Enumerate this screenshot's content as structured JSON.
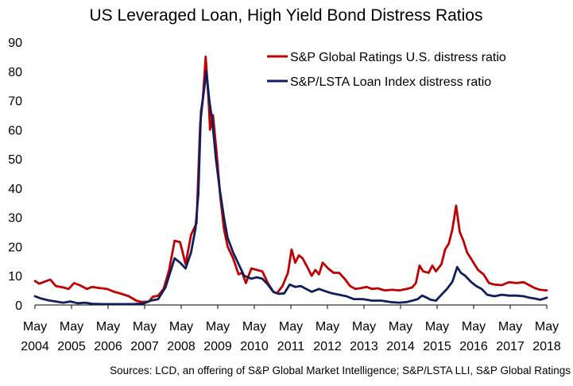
{
  "chart_data": {
    "type": "line",
    "title": "US Leveraged Loan, High Yield Bond Distress Ratios",
    "source": "Sources: LCD, an offering of S&P Global Market Intelligence; S&P/LSTA LLI, S&P Global Ratings",
    "ylim": [
      0,
      90
    ],
    "yticks": [
      0,
      10,
      20,
      30,
      40,
      50,
      60,
      70,
      80,
      90
    ],
    "xlim": [
      2004.33,
      2018.33
    ],
    "xticks": [
      {
        "value": 2004.33,
        "line1": "May",
        "line2": "2004"
      },
      {
        "value": 2005.33,
        "line1": "May",
        "line2": "2005"
      },
      {
        "value": 2006.33,
        "line1": "May",
        "line2": "2006"
      },
      {
        "value": 2007.33,
        "line1": "May",
        "line2": "2007"
      },
      {
        "value": 2008.33,
        "line1": "May",
        "line2": "2008"
      },
      {
        "value": 2009.33,
        "line1": "May",
        "line2": "2009"
      },
      {
        "value": 2010.33,
        "line1": "May",
        "line2": "2010"
      },
      {
        "value": 2011.33,
        "line1": "May",
        "line2": "2011"
      },
      {
        "value": 2012.33,
        "line1": "May",
        "line2": "2012"
      },
      {
        "value": 2013.33,
        "line1": "May",
        "line2": "2013"
      },
      {
        "value": 2014.33,
        "line1": "May",
        "line2": "2014"
      },
      {
        "value": 2015.33,
        "line1": "May",
        "line2": "2015"
      },
      {
        "value": 2016.33,
        "line1": "May",
        "line2": "2016"
      },
      {
        "value": 2017.33,
        "line1": "May",
        "line2": "2017"
      },
      {
        "value": 2018.33,
        "line1": "May",
        "line2": "2018"
      }
    ],
    "legend_position": "top-right",
    "series": [
      {
        "name": "S&P Global Ratings U.S. distress ratio",
        "color": "#c00000",
        "points": [
          [
            2004.33,
            8.2
          ],
          [
            2004.45,
            7.3
          ],
          [
            2004.6,
            8.0
          ],
          [
            2004.75,
            8.7
          ],
          [
            2004.9,
            6.5
          ],
          [
            2005.1,
            6.0
          ],
          [
            2005.25,
            5.5
          ],
          [
            2005.4,
            7.5
          ],
          [
            2005.55,
            6.8
          ],
          [
            2005.75,
            5.5
          ],
          [
            2005.9,
            6.2
          ],
          [
            2006.1,
            5.8
          ],
          [
            2006.3,
            5.5
          ],
          [
            2006.5,
            4.5
          ],
          [
            2006.7,
            3.8
          ],
          [
            2006.9,
            3.0
          ],
          [
            2007.1,
            1.5
          ],
          [
            2007.25,
            1.0
          ],
          [
            2007.45,
            1.2
          ],
          [
            2007.55,
            2.8
          ],
          [
            2007.7,
            3.2
          ],
          [
            2007.85,
            5.5
          ],
          [
            2008.0,
            12.0
          ],
          [
            2008.15,
            22.0
          ],
          [
            2008.3,
            21.5
          ],
          [
            2008.45,
            14.0
          ],
          [
            2008.6,
            24.0
          ],
          [
            2008.75,
            28.0
          ],
          [
            2008.85,
            62.0
          ],
          [
            2008.92,
            70.0
          ],
          [
            2009.0,
            85.0
          ],
          [
            2009.08,
            70.0
          ],
          [
            2009.12,
            60.0
          ],
          [
            2009.2,
            65.0
          ],
          [
            2009.3,
            52.0
          ],
          [
            2009.4,
            37.0
          ],
          [
            2009.5,
            26.0
          ],
          [
            2009.6,
            20.0
          ],
          [
            2009.75,
            16.0
          ],
          [
            2009.9,
            10.5
          ],
          [
            2010.0,
            11.0
          ],
          [
            2010.1,
            7.5
          ],
          [
            2010.25,
            12.5
          ],
          [
            2010.4,
            12.0
          ],
          [
            2010.55,
            11.5
          ],
          [
            2010.7,
            7.5
          ],
          [
            2010.85,
            4.5
          ],
          [
            2010.95,
            4.0
          ],
          [
            2011.1,
            6.5
          ],
          [
            2011.25,
            11.0
          ],
          [
            2011.35,
            19.0
          ],
          [
            2011.45,
            14.5
          ],
          [
            2011.55,
            17.0
          ],
          [
            2011.65,
            16.0
          ],
          [
            2011.8,
            12.5
          ],
          [
            2011.9,
            10.0
          ],
          [
            2012.0,
            12.0
          ],
          [
            2012.1,
            10.5
          ],
          [
            2012.2,
            14.5
          ],
          [
            2012.35,
            12.5
          ],
          [
            2012.5,
            11.0
          ],
          [
            2012.65,
            11.0
          ],
          [
            2012.8,
            9.0
          ],
          [
            2012.95,
            6.5
          ],
          [
            2013.1,
            5.5
          ],
          [
            2013.25,
            5.8
          ],
          [
            2013.4,
            6.2
          ],
          [
            2013.55,
            5.5
          ],
          [
            2013.7,
            5.7
          ],
          [
            2013.9,
            5.0
          ],
          [
            2014.1,
            5.2
          ],
          [
            2014.3,
            5.0
          ],
          [
            2014.5,
            5.5
          ],
          [
            2014.65,
            6.0
          ],
          [
            2014.75,
            7.5
          ],
          [
            2014.85,
            13.5
          ],
          [
            2014.95,
            11.5
          ],
          [
            2015.1,
            11.0
          ],
          [
            2015.2,
            13.5
          ],
          [
            2015.3,
            11.5
          ],
          [
            2015.45,
            14.0
          ],
          [
            2015.55,
            19.0
          ],
          [
            2015.65,
            21.0
          ],
          [
            2015.75,
            26.0
          ],
          [
            2015.85,
            34.0
          ],
          [
            2015.95,
            25.0
          ],
          [
            2016.05,
            22.0
          ],
          [
            2016.15,
            18.0
          ],
          [
            2016.3,
            15.0
          ],
          [
            2016.45,
            12.0
          ],
          [
            2016.6,
            10.5
          ],
          [
            2016.75,
            7.5
          ],
          [
            2016.9,
            7.0
          ],
          [
            2017.1,
            6.8
          ],
          [
            2017.3,
            7.8
          ],
          [
            2017.5,
            7.5
          ],
          [
            2017.7,
            7.8
          ],
          [
            2017.85,
            6.8
          ],
          [
            2018.0,
            5.8
          ],
          [
            2018.15,
            5.2
          ],
          [
            2018.33,
            5.0
          ]
        ]
      },
      {
        "name": "S&P/LSTA Loan Index distress ratio",
        "color": "#0f1f5c",
        "points": [
          [
            2004.33,
            3.0
          ],
          [
            2004.5,
            2.2
          ],
          [
            2004.7,
            1.6
          ],
          [
            2004.9,
            1.2
          ],
          [
            2005.1,
            0.8
          ],
          [
            2005.3,
            1.2
          ],
          [
            2005.5,
            0.6
          ],
          [
            2005.7,
            0.8
          ],
          [
            2005.9,
            0.4
          ],
          [
            2006.2,
            0.3
          ],
          [
            2006.6,
            0.3
          ],
          [
            2007.0,
            0.3
          ],
          [
            2007.3,
            0.5
          ],
          [
            2007.5,
            1.5
          ],
          [
            2007.7,
            2.0
          ],
          [
            2007.9,
            6.0
          ],
          [
            2008.05,
            12.0
          ],
          [
            2008.15,
            16.0
          ],
          [
            2008.3,
            14.5
          ],
          [
            2008.45,
            12.5
          ],
          [
            2008.6,
            18.0
          ],
          [
            2008.72,
            26.0
          ],
          [
            2008.8,
            38.0
          ],
          [
            2008.87,
            66.0
          ],
          [
            2008.95,
            73.0
          ],
          [
            2009.02,
            80.0
          ],
          [
            2009.1,
            70.0
          ],
          [
            2009.18,
            63.0
          ],
          [
            2009.28,
            50.0
          ],
          [
            2009.38,
            40.0
          ],
          [
            2009.5,
            30.0
          ],
          [
            2009.6,
            23.0
          ],
          [
            2009.75,
            18.0
          ],
          [
            2009.9,
            14.0
          ],
          [
            2010.05,
            10.0
          ],
          [
            2010.25,
            9.0
          ],
          [
            2010.4,
            9.5
          ],
          [
            2010.55,
            9.0
          ],
          [
            2010.7,
            7.0
          ],
          [
            2010.85,
            4.5
          ],
          [
            2011.0,
            3.8
          ],
          [
            2011.15,
            4.0
          ],
          [
            2011.3,
            7.0
          ],
          [
            2011.45,
            6.2
          ],
          [
            2011.6,
            6.5
          ],
          [
            2011.75,
            5.5
          ],
          [
            2011.9,
            4.5
          ],
          [
            2012.1,
            5.5
          ],
          [
            2012.25,
            4.8
          ],
          [
            2012.45,
            4.0
          ],
          [
            2012.65,
            3.5
          ],
          [
            2012.85,
            3.0
          ],
          [
            2013.05,
            2.0
          ],
          [
            2013.3,
            2.0
          ],
          [
            2013.55,
            1.5
          ],
          [
            2013.8,
            1.5
          ],
          [
            2014.05,
            1.0
          ],
          [
            2014.3,
            0.8
          ],
          [
            2014.5,
            1.0
          ],
          [
            2014.65,
            1.5
          ],
          [
            2014.8,
            2.0
          ],
          [
            2014.92,
            3.2
          ],
          [
            2015.05,
            2.5
          ],
          [
            2015.15,
            1.8
          ],
          [
            2015.3,
            1.5
          ],
          [
            2015.45,
            3.5
          ],
          [
            2015.6,
            5.5
          ],
          [
            2015.75,
            8.0
          ],
          [
            2015.88,
            13.0
          ],
          [
            2015.98,
            11.0
          ],
          [
            2016.1,
            10.0
          ],
          [
            2016.25,
            8.0
          ],
          [
            2016.4,
            6.5
          ],
          [
            2016.55,
            5.5
          ],
          [
            2016.7,
            3.5
          ],
          [
            2016.9,
            3.0
          ],
          [
            2017.1,
            3.5
          ],
          [
            2017.3,
            3.2
          ],
          [
            2017.5,
            3.2
          ],
          [
            2017.7,
            3.0
          ],
          [
            2017.85,
            2.5
          ],
          [
            2018.0,
            2.2
          ],
          [
            2018.15,
            1.8
          ],
          [
            2018.33,
            2.5
          ]
        ]
      }
    ]
  }
}
